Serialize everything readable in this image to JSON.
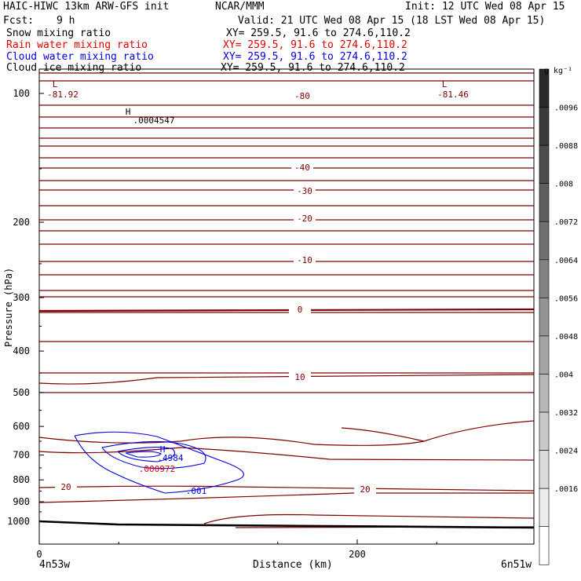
{
  "header": {
    "title": "HAIC-HIWC 13km ARW-GFS init",
    "org": "NCAR/MMM",
    "init": "Init: 12 UTC Wed 08 Apr 15",
    "fcst_label": "Fcst:",
    "fcst_value": "9 h",
    "valid": "Valid: 21 UTC Wed 08 Apr 15 (18 LST Wed 08 Apr 15)"
  },
  "fields": [
    {
      "name": "Snow mixing ratio",
      "xy": "XY= 259.5, 91.6 to 274.6,110.2",
      "color": "#000000"
    },
    {
      "name": "Rain water mixing ratio",
      "xy": "XY= 259.5, 91.6 to 274.6,110.2",
      "color": "#e00000"
    },
    {
      "name": "Cloud water mixing ratio",
      "xy": "XY= 259.5, 91.6 to 274.6,110.2",
      "color": "#0000e0"
    },
    {
      "name": "Cloud ice mixing ratio",
      "xy": "XY= 259.5, 91.6 to 274.6,110.2",
      "color": "#000000"
    }
  ],
  "chart_data": {
    "type": "contour cross-section",
    "xlabel": "Distance (km)",
    "ylabel": "Pressure (hPa)",
    "x_ticks": [
      "0",
      "200"
    ],
    "y_ticks": [
      "100",
      "200",
      "300",
      "400",
      "500",
      "600",
      "700",
      "800",
      "900",
      "1000"
    ],
    "y_scale": "log-pressure",
    "xlim": [
      0,
      312
    ],
    "ylim": [
      1050,
      70
    ],
    "endpoints": {
      "left": "4n53w",
      "right": "6n51w"
    },
    "colorbar": {
      "unit": "g kg⁻¹",
      "ticks": [
        ".0016",
        ".0024",
        ".0032",
        ".004",
        ".0048",
        ".0056",
        ".0064",
        ".0072",
        ".008",
        ".0088",
        ".0096"
      ]
    },
    "temperature_contour_labels": [
      "-80",
      "-40",
      "-30",
      "-20",
      "-10",
      "0",
      "10",
      "20",
      "20"
    ],
    "annotations": [
      {
        "mark": "L",
        "value": "-81.92",
        "color": "#800000"
      },
      {
        "mark": "L",
        "value": "-81.46",
        "color": "#800000"
      },
      {
        "mark": "H",
        "value": ".0004547",
        "color": "#000000"
      },
      {
        "mark": "H",
        "value": ".4984",
        "color": "#0000e0"
      },
      {
        "mark": "",
        "value": ".000972",
        "color": "#e00000"
      },
      {
        "mark": "",
        "value": ".001",
        "color": "#0000e0"
      }
    ]
  }
}
